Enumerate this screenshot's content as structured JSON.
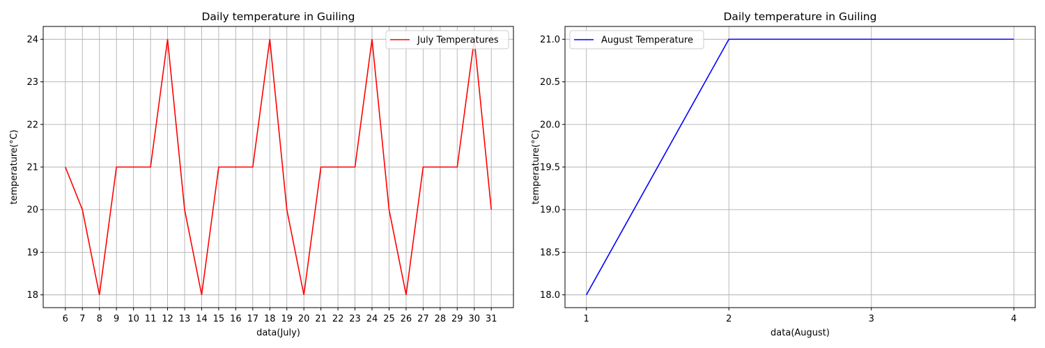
{
  "chart_data": [
    {
      "type": "line",
      "title": "Daily temperature in Guiling",
      "xlabel": "data(July)",
      "ylabel": "temperature(°C)",
      "grid": true,
      "legend_placement": "upper-right",
      "x": [
        6,
        7,
        8,
        9,
        10,
        11,
        12,
        13,
        14,
        15,
        16,
        17,
        18,
        19,
        20,
        21,
        22,
        23,
        24,
        25,
        26,
        27,
        28,
        29,
        30,
        31
      ],
      "xlim": [
        4.7,
        32.3
      ],
      "ylim": [
        17.7,
        24.3
      ],
      "xticks": [
        6,
        7,
        8,
        9,
        10,
        11,
        12,
        13,
        14,
        15,
        16,
        17,
        18,
        19,
        20,
        21,
        22,
        23,
        24,
        25,
        26,
        27,
        28,
        29,
        30,
        31
      ],
      "yticks": [
        18,
        19,
        20,
        21,
        22,
        23,
        24
      ],
      "series": [
        {
          "name": "July Temperatures",
          "color": "#ff0000",
          "values": [
            21,
            20,
            18,
            21,
            21,
            21,
            24,
            20,
            18,
            21,
            21,
            21,
            24,
            20,
            18,
            21,
            21,
            21,
            24,
            20,
            18,
            21,
            21,
            21,
            24,
            20
          ]
        }
      ]
    },
    {
      "type": "line",
      "title": "Daily temperature in Guiling",
      "xlabel": "data(August)",
      "ylabel": "temperature(°C)",
      "grid": true,
      "legend_placement": "upper-left",
      "x": [
        1,
        2,
        3,
        4
      ],
      "xlim": [
        0.85,
        4.15
      ],
      "ylim": [
        17.85,
        21.15
      ],
      "xticks": [
        1,
        2,
        3,
        4
      ],
      "yticks": [
        18.0,
        18.5,
        19.0,
        19.5,
        20.0,
        20.5,
        21.0
      ],
      "ytick_decimals": 1,
      "series": [
        {
          "name": "August Temperature",
          "color": "#0000ff",
          "values": [
            18,
            21,
            21,
            21
          ]
        }
      ]
    }
  ]
}
